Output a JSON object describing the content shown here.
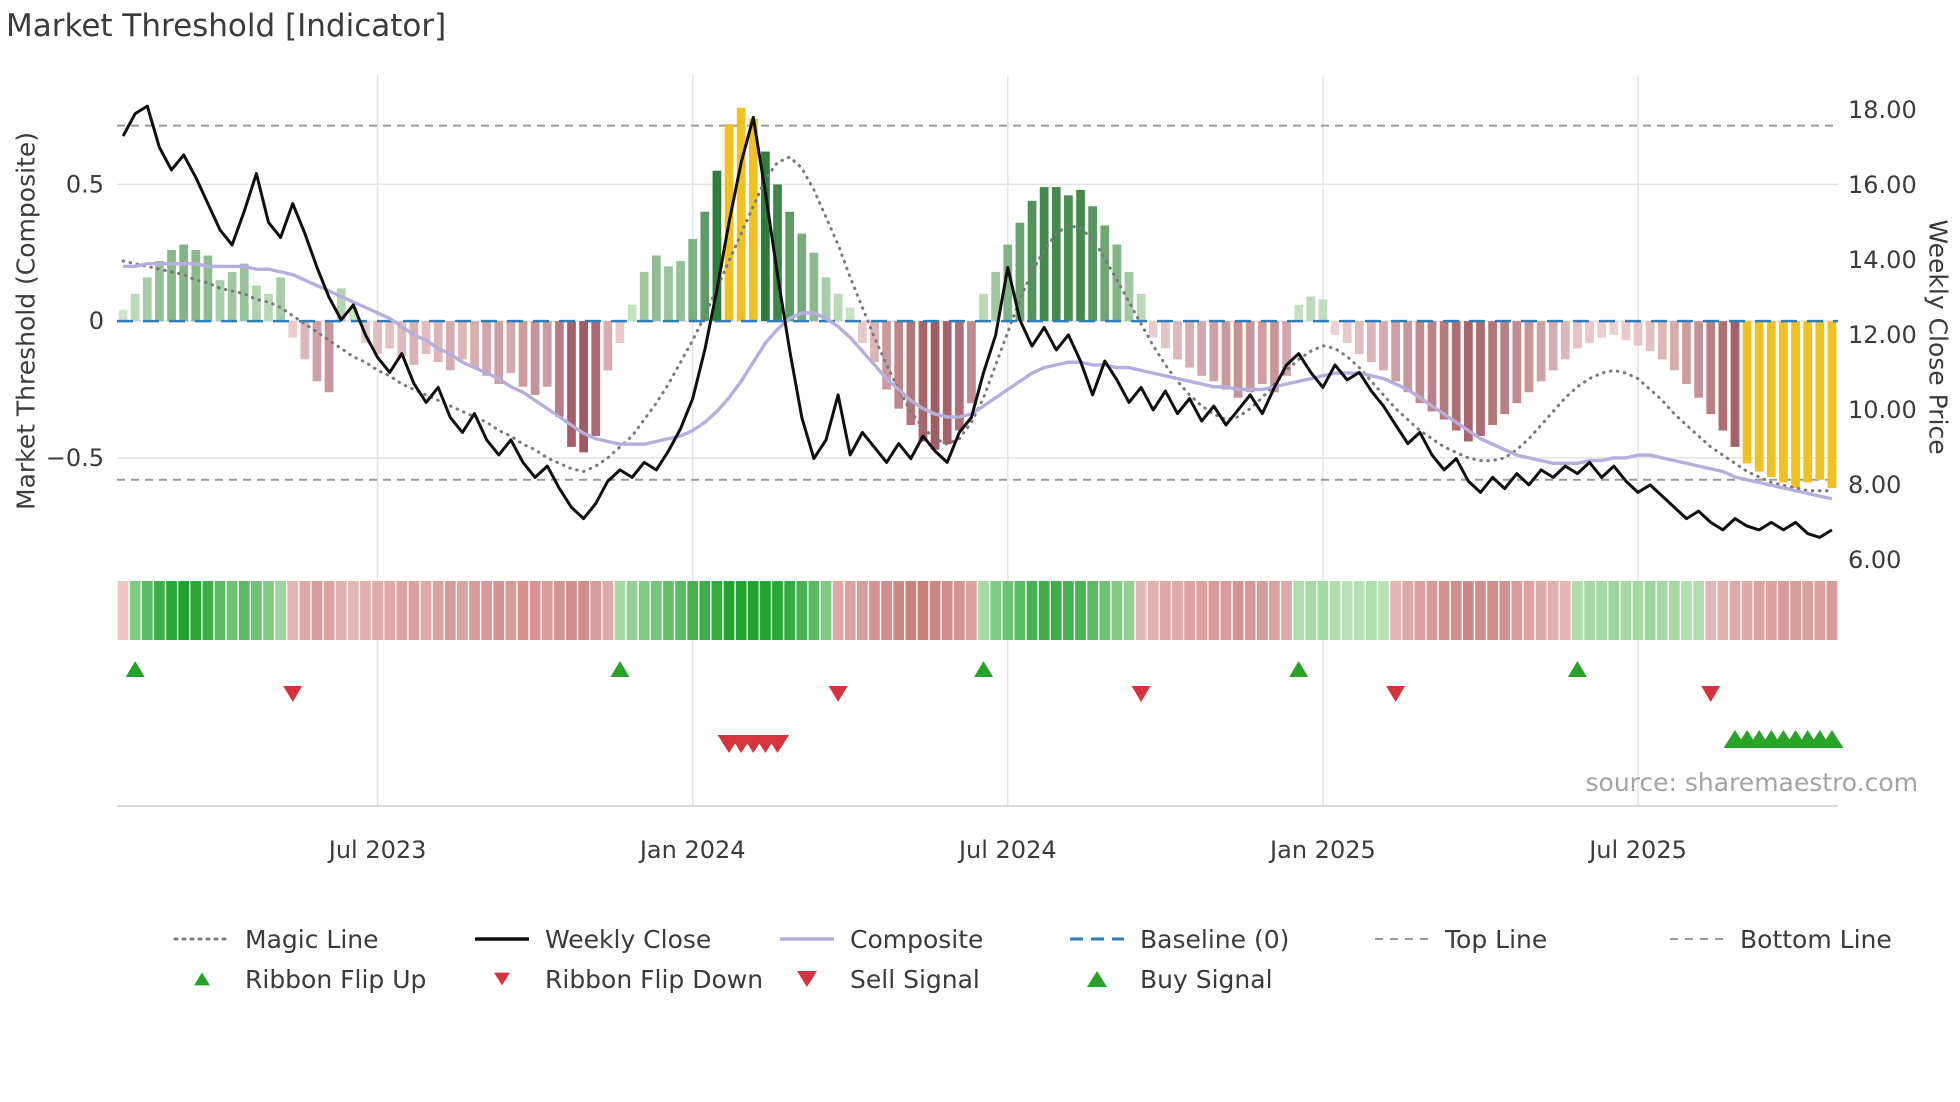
{
  "title": "Market Threshold [Indicator]",
  "source_credit": "source: sharemaestro.com",
  "axes": {
    "left_label": "Market Threshold (Composite)",
    "right_label": "Weekly Close Price",
    "left_ticks": [
      {
        "v": 0.5,
        "label": "0.5"
      },
      {
        "v": 0,
        "label": "0"
      },
      {
        "v": -0.5,
        "label": "−0.5"
      }
    ],
    "right_ticks": [
      {
        "v": 18,
        "label": "18.00"
      },
      {
        "v": 16,
        "label": "16.00"
      },
      {
        "v": 14,
        "label": "14.00"
      },
      {
        "v": 12,
        "label": "12.00"
      },
      {
        "v": 10,
        "label": "10.00"
      },
      {
        "v": 8,
        "label": "8.00"
      },
      {
        "v": 6,
        "label": "6.00"
      }
    ],
    "x_ticks": [
      {
        "week": 21,
        "label": "Jul 2023"
      },
      {
        "week": 47,
        "label": "Jan 2024"
      },
      {
        "week": 73,
        "label": "Jul 2024"
      },
      {
        "week": 99,
        "label": "Jan 2025"
      },
      {
        "week": 125,
        "label": "Jul 2025"
      }
    ]
  },
  "thresholds": {
    "top_line": 0.715,
    "baseline": 0,
    "bottom_line": -0.58
  },
  "colors": {
    "weekly_close": "#101010",
    "composite_line": "#b6aede",
    "magic_line": "#7a7a7a",
    "baseline": "#2e7ebb",
    "threshold_line": "#9a9a9a",
    "bar_pos_light": "#d9edd3",
    "bar_pos_dark": "#2f7d3b",
    "bar_neg_light": "#f6dede",
    "bar_neg_dark": "#96464c",
    "bar_extreme": "#f0c11f",
    "ribbon_pos_light": "#ddf2d8",
    "ribbon_pos_dark": "#21a32e",
    "ribbon_neg_light": "#f7e3e3",
    "ribbon_neg_dark": "#b6544f",
    "signal_up": "#27a327",
    "signal_down": "#d7333f",
    "grid": "#e4e4e4",
    "separator": "#cdcdcd",
    "text": "#3b3b3b",
    "muted_text": "#a3a3a3"
  },
  "legend": {
    "row1": [
      {
        "label": "Magic Line",
        "sample": "dotted",
        "color": "#7a7a7a"
      },
      {
        "label": "Weekly Close",
        "sample": "solid",
        "color": "#101010"
      },
      {
        "label": "Composite",
        "sample": "solid",
        "color": "#b6aede"
      },
      {
        "label": "Baseline (0)",
        "sample": "dashed",
        "color": "#2e7ebb"
      },
      {
        "label": "Top Line",
        "sample": "dashed-thin",
        "color": "#9a9a9a"
      },
      {
        "label": "Bottom Line",
        "sample": "dashed-thin",
        "color": "#9a9a9a"
      }
    ],
    "row2": [
      {
        "label": "Ribbon Flip Up",
        "sample": "triangle-up",
        "msize": 8,
        "color": "#27a327"
      },
      {
        "label": "Ribbon Flip Down",
        "sample": "triangle-down",
        "msize": 8,
        "color": "#d7333f"
      },
      {
        "label": "Sell Signal",
        "sample": "triangle-down",
        "msize": 10,
        "color": "#d7333f"
      },
      {
        "label": "Buy Signal",
        "sample": "triangle-up",
        "msize": 10,
        "color": "#27a327"
      }
    ]
  },
  "chart_data": {
    "type": "combo",
    "weeks": 142,
    "left_axis_range": [
      -0.91,
      0.9
    ],
    "right_axis_range": [
      5.73,
      18.93
    ],
    "series": [
      {
        "name": "Composite Bars",
        "type": "bar",
        "axis": "left",
        "values": [
          0.04,
          0.1,
          0.16,
          0.22,
          0.26,
          0.28,
          0.26,
          0.24,
          0.15,
          0.18,
          0.21,
          0.13,
          0.1,
          0.16,
          -0.06,
          -0.14,
          -0.22,
          -0.26,
          0.12,
          0.05,
          -0.08,
          -0.12,
          -0.1,
          -0.13,
          -0.16,
          -0.12,
          -0.15,
          -0.18,
          -0.14,
          -0.17,
          -0.2,
          -0.23,
          -0.19,
          -0.24,
          -0.27,
          -0.24,
          -0.35,
          -0.46,
          -0.48,
          -0.42,
          -0.18,
          -0.08,
          0.06,
          0.18,
          0.24,
          0.2,
          0.22,
          0.3,
          0.4,
          0.55,
          0.72,
          0.78,
          0.74,
          0.62,
          0.5,
          0.4,
          0.32,
          0.25,
          0.16,
          0.1,
          0.05,
          -0.08,
          -0.15,
          -0.25,
          -0.32,
          -0.38,
          -0.44,
          -0.47,
          -0.45,
          -0.4,
          -0.3,
          0.1,
          0.18,
          0.28,
          0.36,
          0.44,
          0.49,
          0.49,
          0.46,
          0.48,
          0.42,
          0.35,
          0.28,
          0.18,
          0.1,
          -0.06,
          -0.1,
          -0.14,
          -0.17,
          -0.2,
          -0.22,
          -0.25,
          -0.28,
          -0.26,
          -0.23,
          -0.26,
          -0.2,
          0.06,
          0.09,
          0.08,
          -0.05,
          -0.08,
          -0.12,
          -0.15,
          -0.18,
          -0.22,
          -0.26,
          -0.3,
          -0.33,
          -0.36,
          -0.4,
          -0.44,
          -0.42,
          -0.38,
          -0.34,
          -0.3,
          -0.26,
          -0.22,
          -0.18,
          -0.14,
          -0.1,
          -0.08,
          -0.06,
          -0.05,
          -0.07,
          -0.09,
          -0.11,
          -0.14,
          -0.18,
          -0.23,
          -0.28,
          -0.34,
          -0.4,
          -0.46,
          -0.52,
          -0.55,
          -0.57,
          -0.59,
          -0.61,
          -0.59,
          -0.58,
          -0.61
        ]
      },
      {
        "name": "Weekly Close",
        "type": "line",
        "axis": "right",
        "values": [
          17.3,
          17.9,
          18.1,
          17.0,
          16.4,
          16.8,
          16.2,
          15.5,
          14.8,
          14.4,
          15.3,
          16.3,
          15.0,
          14.6,
          15.5,
          14.7,
          13.8,
          13.0,
          12.4,
          12.8,
          12.0,
          11.4,
          11.0,
          11.5,
          10.7,
          10.2,
          10.6,
          9.8,
          9.4,
          9.9,
          9.2,
          8.8,
          9.2,
          8.6,
          8.2,
          8.5,
          7.9,
          7.4,
          7.1,
          7.5,
          8.1,
          8.4,
          8.2,
          8.6,
          8.4,
          8.9,
          9.5,
          10.3,
          11.6,
          13.2,
          15.0,
          16.6,
          17.8,
          15.8,
          13.6,
          11.6,
          9.8,
          8.7,
          9.2,
          10.4,
          8.8,
          9.4,
          9.0,
          8.6,
          9.1,
          8.7,
          9.3,
          8.9,
          8.6,
          9.4,
          9.8,
          11.0,
          12.0,
          13.8,
          12.4,
          11.7,
          12.2,
          11.6,
          12.0,
          11.3,
          10.4,
          11.3,
          10.8,
          10.2,
          10.6,
          10.0,
          10.5,
          9.9,
          10.3,
          9.7,
          10.1,
          9.6,
          10.0,
          10.4,
          9.9,
          10.6,
          11.2,
          11.5,
          11.0,
          10.6,
          11.2,
          10.8,
          11.0,
          10.5,
          10.1,
          9.6,
          9.1,
          9.4,
          8.8,
          8.4,
          8.7,
          8.1,
          7.8,
          8.2,
          7.9,
          8.3,
          8.0,
          8.4,
          8.2,
          8.5,
          8.3,
          8.6,
          8.2,
          8.5,
          8.1,
          7.8,
          8.0,
          7.7,
          7.4,
          7.1,
          7.3,
          7.0,
          6.8,
          7.1,
          6.9,
          6.8,
          7.0,
          6.8,
          7.0,
          6.7,
          6.6,
          6.8
        ]
      },
      {
        "name": "Composite",
        "type": "line",
        "axis": "left",
        "values": [
          0.2,
          0.2,
          0.21,
          0.21,
          0.21,
          0.21,
          0.21,
          0.2,
          0.2,
          0.2,
          0.2,
          0.19,
          0.19,
          0.18,
          0.17,
          0.15,
          0.13,
          0.11,
          0.09,
          0.07,
          0.05,
          0.03,
          0.01,
          -0.02,
          -0.05,
          -0.07,
          -0.1,
          -0.12,
          -0.15,
          -0.17,
          -0.19,
          -0.21,
          -0.24,
          -0.26,
          -0.29,
          -0.32,
          -0.35,
          -0.38,
          -0.41,
          -0.43,
          -0.44,
          -0.45,
          -0.45,
          -0.45,
          -0.44,
          -0.43,
          -0.42,
          -0.4,
          -0.37,
          -0.33,
          -0.28,
          -0.22,
          -0.15,
          -0.08,
          -0.03,
          0.01,
          0.03,
          0.03,
          0.01,
          -0.02,
          -0.06,
          -0.11,
          -0.16,
          -0.21,
          -0.25,
          -0.29,
          -0.32,
          -0.34,
          -0.35,
          -0.35,
          -0.34,
          -0.31,
          -0.28,
          -0.25,
          -0.22,
          -0.19,
          -0.17,
          -0.16,
          -0.15,
          -0.15,
          -0.16,
          -0.16,
          -0.17,
          -0.17,
          -0.18,
          -0.19,
          -0.2,
          -0.21,
          -0.22,
          -0.23,
          -0.24,
          -0.24,
          -0.25,
          -0.25,
          -0.25,
          -0.24,
          -0.23,
          -0.22,
          -0.21,
          -0.2,
          -0.19,
          -0.19,
          -0.19,
          -0.2,
          -0.21,
          -0.23,
          -0.25,
          -0.28,
          -0.31,
          -0.34,
          -0.37,
          -0.4,
          -0.43,
          -0.45,
          -0.47,
          -0.49,
          -0.5,
          -0.51,
          -0.52,
          -0.52,
          -0.52,
          -0.51,
          -0.51,
          -0.5,
          -0.5,
          -0.49,
          -0.49,
          -0.5,
          -0.51,
          -0.52,
          -0.53,
          -0.54,
          -0.55,
          -0.57,
          -0.58,
          -0.59,
          -0.6,
          -0.61,
          -0.62,
          -0.63,
          -0.64,
          -0.65
        ]
      },
      {
        "name": "Magic Line",
        "type": "line",
        "style": "dotted",
        "axis": "left",
        "values": [
          0.22,
          0.21,
          0.2,
          0.19,
          0.18,
          0.17,
          0.15,
          0.14,
          0.12,
          0.11,
          0.1,
          0.08,
          0.07,
          0.05,
          0.02,
          -0.01,
          -0.04,
          -0.07,
          -0.1,
          -0.13,
          -0.15,
          -0.18,
          -0.2,
          -0.23,
          -0.25,
          -0.27,
          -0.29,
          -0.31,
          -0.33,
          -0.35,
          -0.37,
          -0.4,
          -0.42,
          -0.45,
          -0.47,
          -0.5,
          -0.52,
          -0.54,
          -0.55,
          -0.53,
          -0.5,
          -0.46,
          -0.42,
          -0.36,
          -0.3,
          -0.23,
          -0.15,
          -0.07,
          0.02,
          0.12,
          0.22,
          0.32,
          0.42,
          0.52,
          0.58,
          0.6,
          0.56,
          0.48,
          0.38,
          0.28,
          0.16,
          0.05,
          -0.06,
          -0.16,
          -0.25,
          -0.33,
          -0.39,
          -0.43,
          -0.45,
          -0.43,
          -0.37,
          -0.28,
          -0.16,
          -0.04,
          0.08,
          0.18,
          0.26,
          0.32,
          0.35,
          0.34,
          0.3,
          0.23,
          0.15,
          0.07,
          -0.01,
          -0.09,
          -0.16,
          -0.22,
          -0.27,
          -0.31,
          -0.34,
          -0.36,
          -0.35,
          -0.32,
          -0.28,
          -0.23,
          -0.18,
          -0.14,
          -0.11,
          -0.09,
          -0.1,
          -0.13,
          -0.17,
          -0.22,
          -0.27,
          -0.32,
          -0.36,
          -0.4,
          -0.43,
          -0.46,
          -0.48,
          -0.5,
          -0.51,
          -0.51,
          -0.5,
          -0.47,
          -0.43,
          -0.38,
          -0.33,
          -0.28,
          -0.24,
          -0.21,
          -0.19,
          -0.18,
          -0.19,
          -0.21,
          -0.25,
          -0.29,
          -0.34,
          -0.38,
          -0.42,
          -0.46,
          -0.49,
          -0.52,
          -0.55,
          -0.57,
          -0.59,
          -0.6,
          -0.61,
          -0.62,
          -0.62,
          -0.62
        ]
      }
    ],
    "extreme_weeks": [
      50,
      51,
      52,
      134,
      135,
      136,
      137,
      138,
      139,
      140,
      141
    ],
    "ribbon": [
      -0.2,
      0.5,
      0.7,
      0.85,
      0.95,
      1.0,
      0.95,
      0.85,
      0.7,
      0.6,
      0.7,
      0.6,
      0.5,
      0.35,
      -0.3,
      -0.4,
      -0.5,
      -0.45,
      -0.35,
      -0.3,
      -0.35,
      -0.4,
      -0.4,
      -0.45,
      -0.45,
      -0.4,
      -0.45,
      -0.5,
      -0.45,
      -0.5,
      -0.5,
      -0.55,
      -0.5,
      -0.55,
      -0.55,
      -0.5,
      -0.55,
      -0.6,
      -0.6,
      -0.5,
      -0.4,
      0.3,
      0.4,
      0.5,
      0.55,
      0.65,
      0.7,
      0.8,
      0.85,
      0.9,
      1.0,
      1.0,
      1.0,
      1.0,
      0.95,
      0.9,
      0.8,
      0.7,
      0.5,
      -0.4,
      -0.45,
      -0.5,
      -0.55,
      -0.6,
      -0.65,
      -0.7,
      -0.7,
      -0.65,
      -0.6,
      -0.55,
      -0.45,
      0.3,
      0.5,
      0.6,
      0.7,
      0.8,
      0.85,
      0.85,
      0.8,
      0.8,
      0.7,
      0.6,
      0.5,
      0.4,
      -0.3,
      -0.35,
      -0.4,
      -0.4,
      -0.45,
      -0.45,
      -0.5,
      -0.5,
      -0.55,
      -0.5,
      -0.5,
      -0.45,
      -0.4,
      0.25,
      0.3,
      0.3,
      0.25,
      0.2,
      0.2,
      0.25,
      0.2,
      -0.3,
      -0.4,
      -0.45,
      -0.5,
      -0.55,
      -0.6,
      -0.65,
      -0.6,
      -0.6,
      -0.55,
      -0.5,
      -0.45,
      -0.4,
      -0.35,
      -0.3,
      0.25,
      0.3,
      0.3,
      0.35,
      0.3,
      0.3,
      0.35,
      0.3,
      0.3,
      0.25,
      0.25,
      -0.3,
      -0.35,
      -0.4,
      -0.4,
      -0.45,
      -0.45,
      -0.5,
      -0.5,
      -0.45,
      -0.45,
      -0.5
    ],
    "signals": {
      "ribbon_flip_up_weeks": [
        1,
        41,
        71,
        97,
        120
      ],
      "ribbon_flip_down_weeks": [
        14,
        59,
        84,
        105,
        131
      ],
      "sell_weeks": [
        50,
        51,
        52,
        53,
        54
      ],
      "buy_weeks": [
        133,
        134,
        135,
        136,
        137,
        138,
        139,
        140,
        141
      ]
    }
  }
}
